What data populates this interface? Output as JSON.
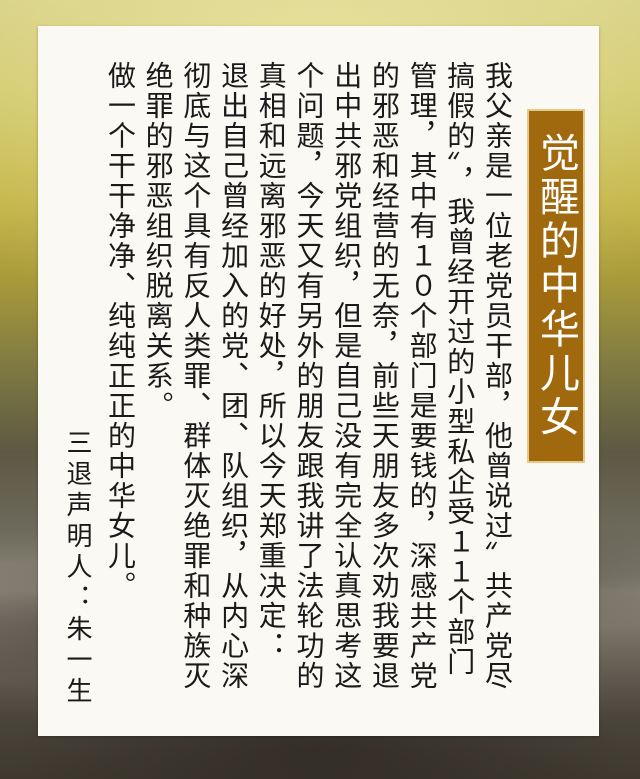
{
  "title": "觉醒的中华儿女",
  "paragraphs": [
    "我父亲是一位老党员干部，他曾说过〞共产党尽搞假的〞，我曾经开过的小型私企受１１个部门管理，其中有１０个部门是要钱的，深感共产党的邪恶和经营的无奈，前些天朋友多次劝我要退出中共邪党组织，但是自己没有完全认真思考这个问题，今天又有另外的朋友跟我讲了法轮功的真相和远离邪恶的好处，所以今天郑重决定：",
    "退出自己曾经加入的党、团、队组织，从内心深彻底与这个具有反人类罪、群体灭绝罪和种族灭绝罪的邪恶组织脱离关系。",
    "做一个干干净净、纯纯正正的中华女儿。"
  ],
  "signature": "三退声明人：朱一生",
  "colors": {
    "banner": "#a1690d",
    "banner_border": "#e7c888",
    "paper": "#fbf9f3",
    "text": "#1a1a1a"
  }
}
